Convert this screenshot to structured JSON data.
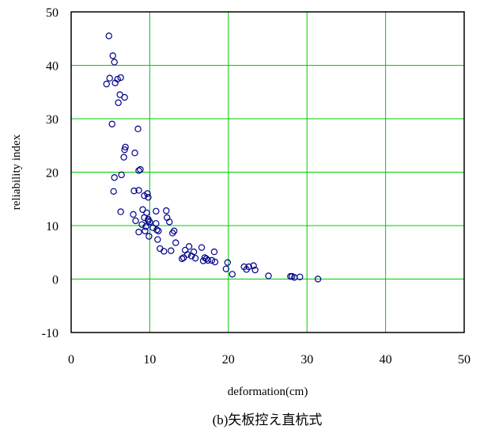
{
  "chart_data": {
    "type": "scatter",
    "title": "",
    "xlabel": "deformation(cm)",
    "ylabel": "reliability index",
    "caption": "(b)矢板控え直杭式",
    "xlim": [
      0,
      50
    ],
    "ylim": [
      -10,
      50
    ],
    "x_ticks": [
      0,
      10,
      20,
      30,
      40,
      50
    ],
    "y_ticks": [
      -10,
      0,
      10,
      20,
      30,
      40,
      50
    ],
    "x_tick_labels": [
      "0",
      "10",
      "20",
      "30",
      "40",
      "50"
    ],
    "y_tick_labels": [
      "-10",
      "0",
      "10",
      "20",
      "30",
      "40",
      "50"
    ],
    "grid": true,
    "colors": {
      "grid": "#00cc00",
      "marker": "#00008b",
      "frame": "#000000"
    },
    "marker": "open-circle",
    "points": [
      [
        4.8,
        45.5
      ],
      [
        5.3,
        41.8
      ],
      [
        5.5,
        40.6
      ],
      [
        4.5,
        36.5
      ],
      [
        4.9,
        37.6
      ],
      [
        5.6,
        36.7
      ],
      [
        5.9,
        37.4
      ],
      [
        6.3,
        37.7
      ],
      [
        6.2,
        34.5
      ],
      [
        6.8,
        34.0
      ],
      [
        6.0,
        33.0
      ],
      [
        5.2,
        29.0
      ],
      [
        8.5,
        28.1
      ],
      [
        6.9,
        24.7
      ],
      [
        6.8,
        24.2
      ],
      [
        8.1,
        23.6
      ],
      [
        6.7,
        22.8
      ],
      [
        8.6,
        20.3
      ],
      [
        8.8,
        20.5
      ],
      [
        6.4,
        19.5
      ],
      [
        5.5,
        19.0
      ],
      [
        8.0,
        16.5
      ],
      [
        8.6,
        16.6
      ],
      [
        9.7,
        16.0
      ],
      [
        5.4,
        16.4
      ],
      [
        9.3,
        15.6
      ],
      [
        9.8,
        15.3
      ],
      [
        9.1,
        13.0
      ],
      [
        6.3,
        12.6
      ],
      [
        7.9,
        12.1
      ],
      [
        9.6,
        12.4
      ],
      [
        10.8,
        12.7
      ],
      [
        12.1,
        12.8
      ],
      [
        9.3,
        11.5
      ],
      [
        9.8,
        11.2
      ],
      [
        12.2,
        11.5
      ],
      [
        9.8,
        10.9
      ],
      [
        10.0,
        10.7
      ],
      [
        10.8,
        10.4
      ],
      [
        12.5,
        10.7
      ],
      [
        9.0,
        10.2
      ],
      [
        8.2,
        10.9
      ],
      [
        9.5,
        9.8
      ],
      [
        10.4,
        9.6
      ],
      [
        10.9,
        9.2
      ],
      [
        9.4,
        9.0
      ],
      [
        8.6,
        8.8
      ],
      [
        11.1,
        9.0
      ],
      [
        12.9,
        8.6
      ],
      [
        13.1,
        9.0
      ],
      [
        9.9,
        8.0
      ],
      [
        11.0,
        7.4
      ],
      [
        13.3,
        6.8
      ],
      [
        11.3,
        5.7
      ],
      [
        11.8,
        5.2
      ],
      [
        12.7,
        5.3
      ],
      [
        15.0,
        6.1
      ],
      [
        16.6,
        5.9
      ],
      [
        14.5,
        5.4
      ],
      [
        15.6,
        5.1
      ],
      [
        18.2,
        5.1
      ],
      [
        14.8,
        4.6
      ],
      [
        15.3,
        4.3
      ],
      [
        14.3,
        4.0
      ],
      [
        14.1,
        3.8
      ],
      [
        15.8,
        3.9
      ],
      [
        17.0,
        4.0
      ],
      [
        17.2,
        3.8
      ],
      [
        17.4,
        3.5
      ],
      [
        17.9,
        3.5
      ],
      [
        18.3,
        3.2
      ],
      [
        19.9,
        3.1
      ],
      [
        16.8,
        3.4
      ],
      [
        22.0,
        2.3
      ],
      [
        22.6,
        2.3
      ],
      [
        23.2,
        2.5
      ],
      [
        22.3,
        1.8
      ],
      [
        23.4,
        1.7
      ],
      [
        19.7,
        1.9
      ],
      [
        20.5,
        0.9
      ],
      [
        25.1,
        0.6
      ],
      [
        27.9,
        0.5
      ],
      [
        28.1,
        0.5
      ],
      [
        28.4,
        0.3
      ],
      [
        29.1,
        0.4
      ],
      [
        31.4,
        0.0
      ]
    ]
  }
}
